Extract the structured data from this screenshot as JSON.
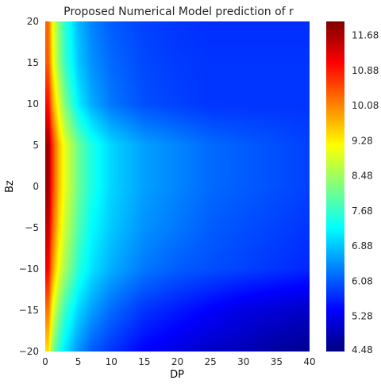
{
  "chart_data": {
    "type": "heatmap",
    "title": "Proposed Numerical Model prediction of r",
    "xlabel": "DP",
    "ylabel": "Bz",
    "xlim": [
      0,
      40
    ],
    "ylim": [
      -20,
      20
    ],
    "x_ticks": [
      0,
      5,
      10,
      15,
      20,
      25,
      30,
      35,
      40
    ],
    "y_ticks": [
      -20,
      -15,
      -10,
      -5,
      0,
      5,
      10,
      15,
      20
    ],
    "x_tick_labels": [
      "0",
      "5",
      "10",
      "15",
      "20",
      "25",
      "30",
      "35",
      "40"
    ],
    "y_tick_labels": [
      "−20",
      "−15",
      "−10",
      "−5",
      "0",
      "5",
      "10",
      "15",
      "20"
    ],
    "colorbar": {
      "min": 4.48,
      "max": 12.0,
      "ticks": [
        4.48,
        5.28,
        6.08,
        6.88,
        7.68,
        8.48,
        9.28,
        10.08,
        10.88,
        11.68
      ],
      "tick_labels": [
        "4.48",
        "5.28",
        "6.08",
        "6.88",
        "7.68",
        "8.48",
        "9.28",
        "10.08",
        "10.88",
        "11.68"
      ]
    },
    "colormap": "jet",
    "grid": false,
    "z_samples": {
      "dp": [
        0.5,
        1,
        2,
        3,
        5,
        7,
        10,
        15,
        20,
        25,
        30,
        35,
        40
      ],
      "bz": [
        -20,
        -15,
        -10,
        -5,
        0,
        5,
        10,
        15,
        20
      ],
      "values": [
        [
          9.4,
          8.4,
          7.6,
          7.1,
          6.5,
          6.1,
          5.8,
          5.4,
          5.2,
          5.0,
          4.9,
          4.7,
          4.6
        ],
        [
          10.2,
          9.2,
          8.3,
          7.7,
          7.0,
          6.6,
          6.2,
          5.8,
          5.6,
          5.4,
          5.2,
          5.1,
          5.0
        ],
        [
          11.1,
          10.1,
          9.1,
          8.5,
          7.6,
          7.1,
          6.7,
          6.3,
          6.1,
          6.0,
          5.9,
          5.8,
          5.7
        ],
        [
          11.5,
          10.5,
          9.5,
          8.8,
          7.9,
          7.3,
          6.9,
          6.5,
          6.3,
          6.1,
          6.0,
          5.9,
          5.8
        ],
        [
          11.8,
          10.8,
          9.7,
          9.0,
          8.1,
          7.5,
          7.0,
          6.6,
          6.4,
          6.2,
          6.1,
          6.0,
          5.9
        ],
        [
          11.8,
          10.8,
          9.7,
          9.0,
          8.1,
          7.5,
          7.0,
          6.6,
          6.4,
          6.2,
          6.1,
          6.0,
          5.9
        ],
        [
          11.0,
          10.0,
          9.0,
          8.2,
          7.2,
          6.7,
          6.3,
          6.0,
          5.9,
          5.8,
          5.8,
          5.8,
          5.8
        ],
        [
          10.4,
          9.4,
          8.4,
          7.7,
          6.9,
          6.5,
          6.2,
          5.95,
          5.85,
          5.8,
          5.8,
          5.8,
          5.8
        ],
        [
          10.3,
          9.3,
          8.3,
          7.6,
          6.8,
          6.4,
          6.1,
          5.9,
          5.8,
          5.75,
          5.75,
          5.75,
          5.75
        ]
      ]
    }
  }
}
